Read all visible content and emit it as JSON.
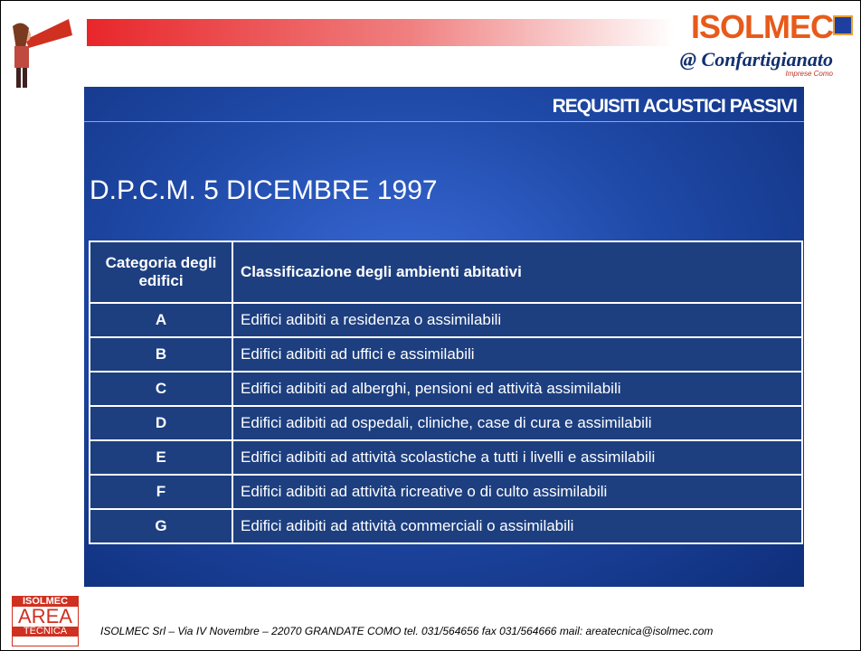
{
  "header": {
    "logo": "ISOLMEC",
    "partner_mark": "@",
    "partner": "Confartigianato",
    "partner_sub": "Imprese Como"
  },
  "slide": {
    "section": "REQUISITI ACUSTICI PASSIVI",
    "title": "D.P.C.M. 5 DICEMBRE 1997"
  },
  "table": {
    "header": [
      "Categoria degli edifici",
      "Classificazione degli ambienti abitativi"
    ],
    "rows": [
      [
        "A",
        "Edifici adibiti a residenza o assimilabili"
      ],
      [
        "B",
        "Edifici adibiti ad uffici e assimilabili"
      ],
      [
        "C",
        "Edifici adibiti ad alberghi, pensioni ed attività assimilabili"
      ],
      [
        "D",
        "Edifici adibiti ad ospedali, cliniche, case di cura e assimilabili"
      ],
      [
        "E",
        "Edifici adibiti ad attività scolastiche a tutti i livelli e assimilabili"
      ],
      [
        "F",
        "Edifici adibiti ad attività ricreative o di culto assimilabili"
      ],
      [
        "G",
        "Edifici adibiti ad attività commerciali o assimilabili"
      ]
    ]
  },
  "footer": {
    "logo": [
      "ISOLMEC",
      "AREA",
      "TECNICA"
    ],
    "text": "ISOLMEC Srl – Via IV Novembre – 22070 GRANDATE COMO  tel. 031/564656  fax 031/564666   mail: areatecnica@isolmec.com"
  }
}
